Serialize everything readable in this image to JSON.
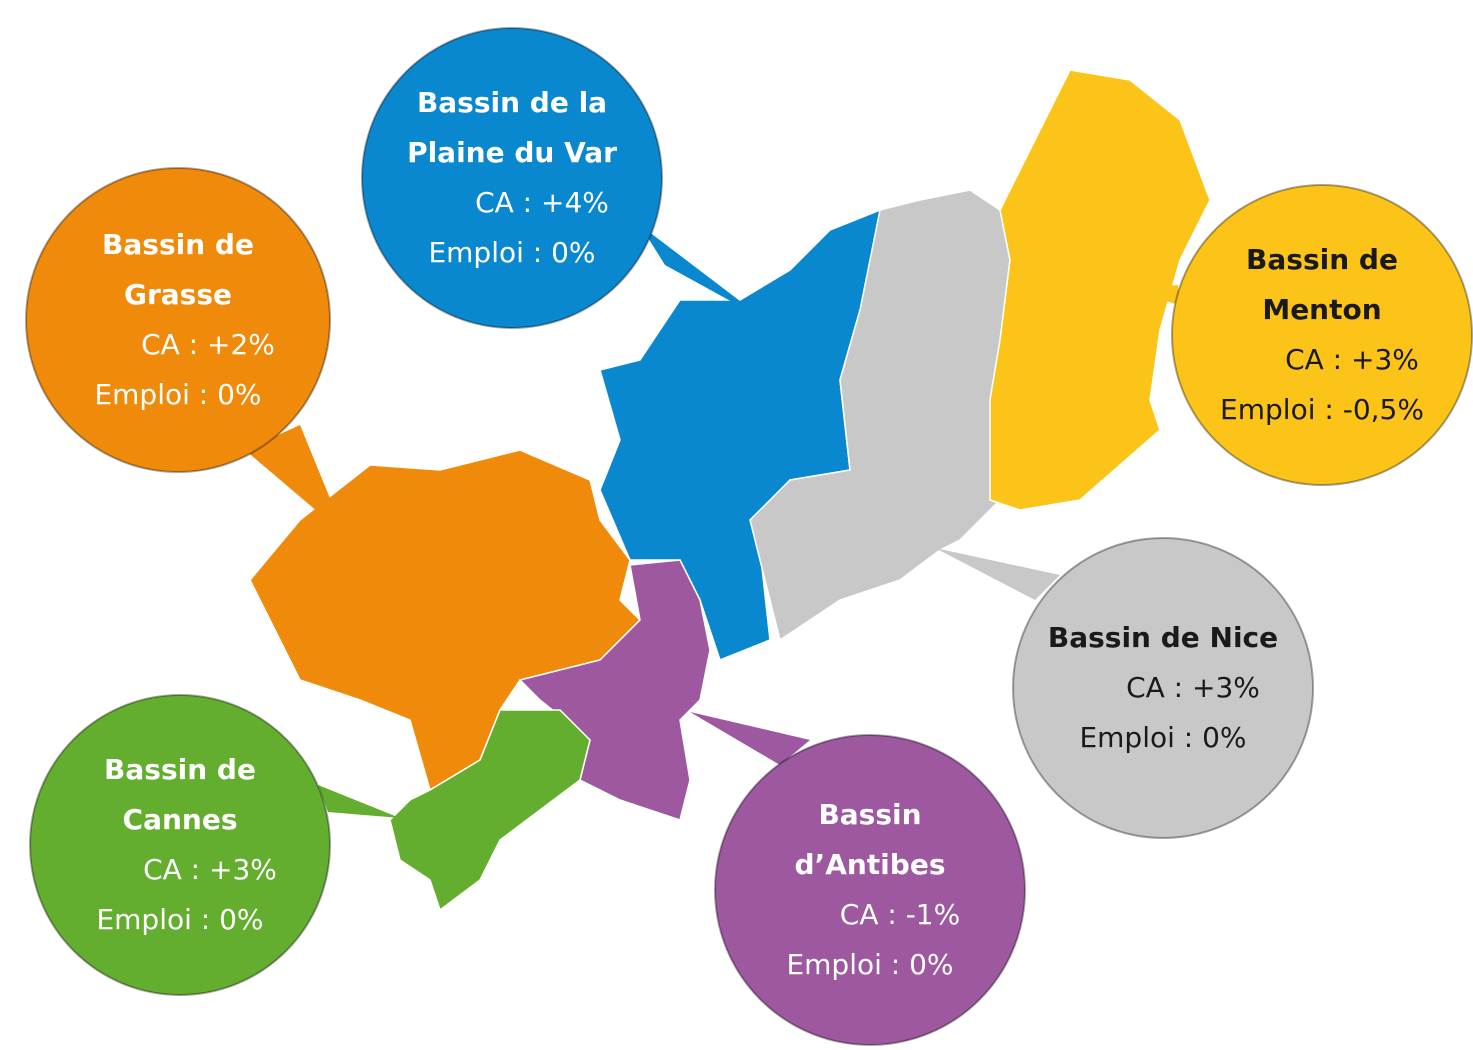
{
  "regions": [
    {
      "title_lines": [
        "Bassin de la",
        "Plaine du Var"
      ],
      "ca": "CA : +4%",
      "emploi": "Emploi : 0%"
    },
    {
      "title_lines": [
        "Bassin de",
        "Grasse"
      ],
      "ca": "CA : +2%",
      "emploi": "Emploi : 0%"
    },
    {
      "title_lines": [
        "Bassin de",
        "Menton"
      ],
      "ca": "CA : +3%",
      "emploi": "Emploi : -0,5%"
    },
    {
      "title_lines": [
        "Bassin de Nice"
      ],
      "ca": "CA : +3%",
      "emploi": "Emploi : 0%"
    },
    {
      "title_lines": [
        "Bassin",
        "d’Antibes"
      ],
      "ca": "CA : -1%",
      "emploi": "Emploi : 0%"
    },
    {
      "title_lines": [
        "Bassin de",
        "Cannes"
      ],
      "ca": "CA : +3%",
      "emploi": "Emploi : 0%"
    }
  ]
}
